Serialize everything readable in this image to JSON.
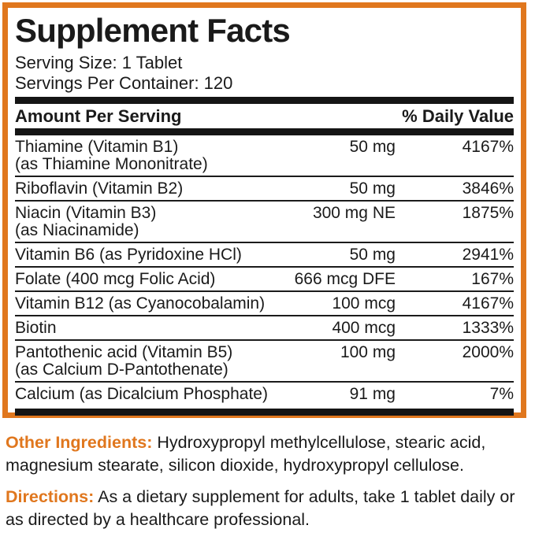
{
  "colors": {
    "accent_orange": "#e0771e",
    "ink_black": "#1a1a1a",
    "bar_black": "#151515"
  },
  "panel": {
    "title": "Supplement Facts",
    "serving_size": "Serving Size: 1 Tablet",
    "servings_per_container": "Servings Per Container: 120",
    "header": {
      "amount_label": "Amount Per Serving",
      "daily_value_label": "% Daily Value"
    },
    "rows": [
      {
        "name": "Thiamine (Vitamin B1)",
        "name2": "(as Thiamine Mononitrate)",
        "amount": "50 mg",
        "dv": "4167%"
      },
      {
        "name": "Riboflavin (Vitamin B2)",
        "name2": "",
        "amount": "50 mg",
        "dv": "3846%"
      },
      {
        "name": "Niacin (Vitamin B3)",
        "name2": "(as Niacinamide)",
        "amount": "300 mg NE",
        "dv": "1875%"
      },
      {
        "name": "Vitamin B6 (as Pyridoxine HCl)",
        "name2": "",
        "amount": "50 mg",
        "dv": "2941%"
      },
      {
        "name": "Folate (400 mcg Folic Acid)",
        "name2": "",
        "amount": "666 mcg DFE",
        "dv": "167%"
      },
      {
        "name": "Vitamin B12 (as Cyanocobalamin)",
        "name2": "",
        "amount": "100 mcg",
        "dv": "4167%"
      },
      {
        "name": "Biotin",
        "name2": "",
        "amount": "400 mcg",
        "dv": "1333%"
      },
      {
        "name": "Pantothenic acid (Vitamin B5)",
        "name2": "(as Calcium D-Pantothenate)",
        "amount": "100 mg",
        "dv": "2000%"
      },
      {
        "name": "Calcium (as Dicalcium Phosphate)",
        "name2": "",
        "amount": "91 mg",
        "dv": "7%"
      }
    ]
  },
  "footer": {
    "other_ingredients_label": "Other Ingredients:",
    "other_ingredients_text": " Hydroxypropyl methylcellulose, stearic acid, magnesium stearate, silicon dioxide, hydroxypropyl cellulose.",
    "directions_label": "Directions:",
    "directions_text": " As a dietary supplement for adults, take 1 tablet daily or as directed by a healthcare professional."
  }
}
